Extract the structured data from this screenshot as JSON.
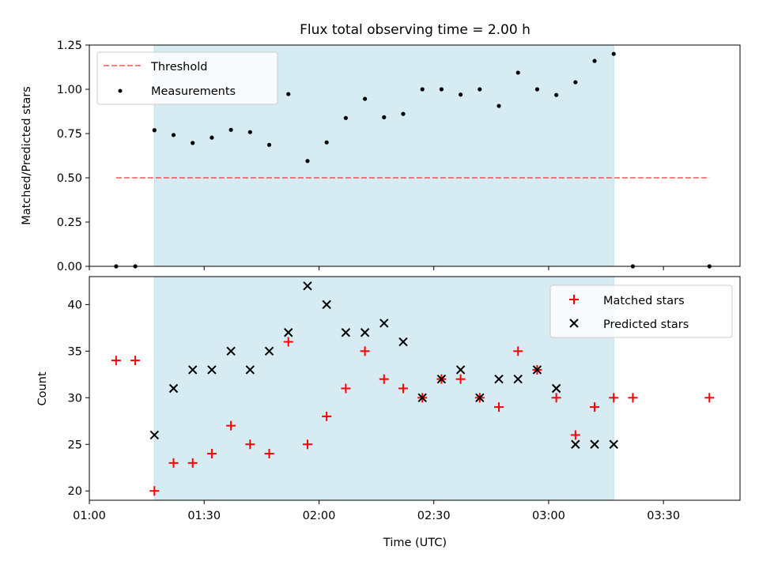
{
  "title": "Flux total observing time = 2.00 h",
  "colors": {
    "shade": "#add8e6",
    "threshold": "#ff0000",
    "measurement": "#000000",
    "matched": "#ff0000",
    "predicted": "#000000"
  },
  "chart_data": [
    {
      "type": "scatter",
      "ylabel": "Matched/Predicted stars",
      "xlim": [
        "01:00",
        "03:50"
      ],
      "ylim": [
        0,
        1.25
      ],
      "yticks": [
        0.0,
        0.25,
        0.5,
        0.75,
        1.0,
        1.25
      ],
      "ytick_labels": [
        "0.00",
        "0.25",
        "0.50",
        "0.75",
        "1.00",
        "1.25"
      ],
      "shaded_span": [
        "01:17",
        "03:17"
      ],
      "legend_position": "upper-left",
      "legend": [
        "Threshold",
        "Measurements"
      ],
      "threshold": {
        "name": "Threshold",
        "x": [
          "01:07",
          "03:42"
        ],
        "y": 0.5,
        "style": "dashed"
      },
      "series": [
        {
          "name": "Measurements",
          "x": [
            "01:07",
            "01:12",
            "01:17",
            "01:22",
            "01:27",
            "01:32",
            "01:37",
            "01:42",
            "01:47",
            "01:52",
            "01:57",
            "02:02",
            "02:07",
            "02:12",
            "02:17",
            "02:22",
            "02:27",
            "02:32",
            "02:37",
            "02:42",
            "02:47",
            "02:52",
            "02:57",
            "03:02",
            "03:07",
            "03:12",
            "03:17",
            "03:22",
            "03:42"
          ],
          "y": [
            0.0,
            0.0,
            0.769,
            0.742,
            0.697,
            0.727,
            0.771,
            0.758,
            0.686,
            0.973,
            0.595,
            0.7,
            0.838,
            0.946,
            0.842,
            0.861,
            1.0,
            1.0,
            0.97,
            1.0,
            0.906,
            1.094,
            1.0,
            0.968,
            1.04,
            1.16,
            1.2,
            0.0,
            0.0
          ]
        }
      ]
    },
    {
      "type": "scatter",
      "xlabel": "Time (UTC)",
      "ylabel": "Count",
      "xlim": [
        "01:00",
        "03:50"
      ],
      "ylim": [
        19,
        43
      ],
      "yticks": [
        20,
        25,
        30,
        35,
        40
      ],
      "xticks": [
        "01:00",
        "01:30",
        "02:00",
        "02:30",
        "03:00",
        "03:30"
      ],
      "shaded_span": [
        "01:17",
        "03:17"
      ],
      "legend_position": "upper-right",
      "legend": [
        "Matched stars",
        "Predicted stars"
      ],
      "series": [
        {
          "name": "Matched stars",
          "marker": "plus",
          "x": [
            "01:07",
            "01:12",
            "01:17",
            "01:22",
            "01:27",
            "01:32",
            "01:37",
            "01:42",
            "01:47",
            "01:52",
            "01:57",
            "02:02",
            "02:07",
            "02:12",
            "02:17",
            "02:22",
            "02:27",
            "02:32",
            "02:37",
            "02:42",
            "02:47",
            "02:52",
            "02:57",
            "03:02",
            "03:07",
            "03:12",
            "03:17",
            "03:22",
            "03:42"
          ],
          "y": [
            34,
            34,
            20,
            23,
            23,
            24,
            27,
            25,
            24,
            36,
            25,
            28,
            31,
            35,
            32,
            31,
            30,
            32,
            32,
            30,
            29,
            35,
            33,
            30,
            26,
            29,
            30,
            30,
            30
          ]
        },
        {
          "name": "Predicted stars",
          "marker": "x",
          "x": [
            "01:17",
            "01:22",
            "01:27",
            "01:32",
            "01:37",
            "01:42",
            "01:47",
            "01:52",
            "01:57",
            "02:02",
            "02:07",
            "02:12",
            "02:17",
            "02:22",
            "02:27",
            "02:32",
            "02:37",
            "02:42",
            "02:47",
            "02:52",
            "02:57",
            "03:02",
            "03:07",
            "03:12",
            "03:17"
          ],
          "y": [
            26,
            31,
            33,
            33,
            35,
            33,
            35,
            37,
            42,
            40,
            37,
            37,
            38,
            36,
            30,
            32,
            33,
            30,
            32,
            32,
            33,
            31,
            25,
            25,
            25
          ]
        }
      ]
    }
  ]
}
